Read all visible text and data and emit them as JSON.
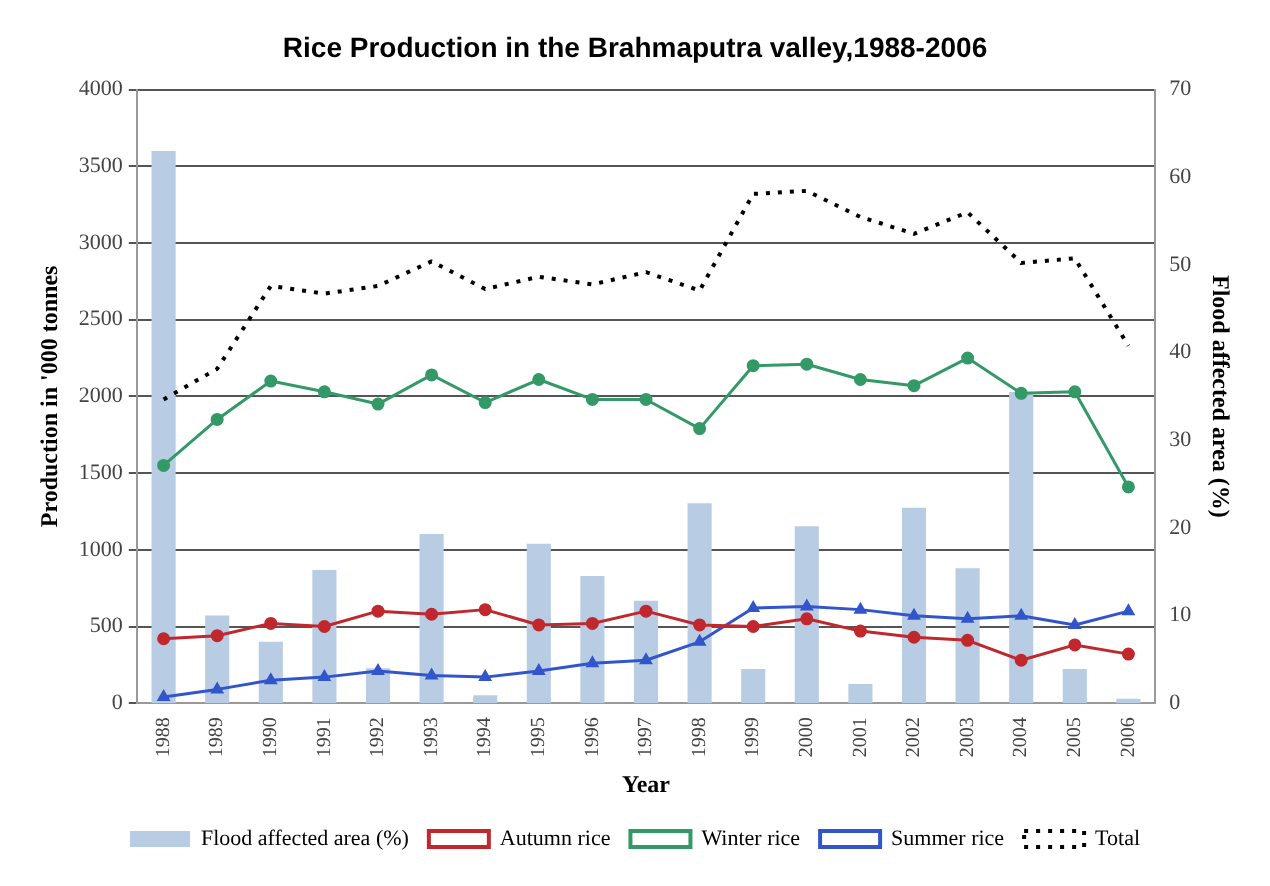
{
  "chart_data": {
    "type": "line",
    "title": "Rice Production in the Brahmaputra valley,1988-2006",
    "xlabel": "Year",
    "ylabel": "Production in '000 tonnes",
    "y2label": "Flood affected area (%)",
    "categories": [
      "1988",
      "1989",
      "1990",
      "1991",
      "1992",
      "1993",
      "1994",
      "1995",
      "1996",
      "1997",
      "1998",
      "1999",
      "2000",
      "2001",
      "2002",
      "2003",
      "2004",
      "2005",
      "2006"
    ],
    "series": [
      {
        "name": "Flood affected area (%)",
        "type": "bar",
        "axis": "y2",
        "color": "#b8cce4",
        "values": [
          63,
          10,
          7,
          15.2,
          4,
          19.3,
          0.9,
          18.2,
          14.5,
          11.7,
          22.8,
          3.9,
          20.2,
          2.2,
          22.3,
          15.4,
          35.5,
          3.9,
          0.5
        ]
      },
      {
        "name": "Autumn rice",
        "color": "#c0282d",
        "marker": "circle",
        "values": [
          420,
          440,
          520,
          500,
          600,
          580,
          610,
          510,
          520,
          600,
          510,
          500,
          550,
          470,
          430,
          410,
          280,
          380,
          320
        ]
      },
      {
        "name": "Winter rice",
        "color": "#339966",
        "marker": "circle",
        "values": [
          1550,
          1850,
          2100,
          2030,
          1950,
          2140,
          1960,
          2110,
          1980,
          1980,
          1790,
          2200,
          2210,
          2110,
          2070,
          2250,
          2020,
          2030,
          1410
        ]
      },
      {
        "name": "Summer rice",
        "color": "#3355cc",
        "marker": "triangle",
        "values": [
          40,
          90,
          150,
          170,
          210,
          180,
          170,
          210,
          260,
          280,
          400,
          620,
          630,
          610,
          570,
          550,
          570,
          510,
          600
        ]
      },
      {
        "name": "Total",
        "color": "#000000",
        "marker": "none",
        "line_style": "dotted",
        "values": [
          1980,
          2180,
          2720,
          2670,
          2720,
          2880,
          2700,
          2780,
          2730,
          2810,
          2690,
          3320,
          3340,
          3170,
          3060,
          3200,
          2870,
          2900,
          2330
        ]
      }
    ],
    "ylim": [
      0,
      4000
    ],
    "yticks": [
      0,
      500,
      1000,
      1500,
      2000,
      2500,
      3000,
      3500,
      4000
    ],
    "y2lim": [
      0,
      70
    ],
    "y2ticks": [
      0,
      10,
      20,
      30,
      40,
      50,
      60,
      70
    ],
    "grid": "y",
    "legend": "bottom"
  }
}
